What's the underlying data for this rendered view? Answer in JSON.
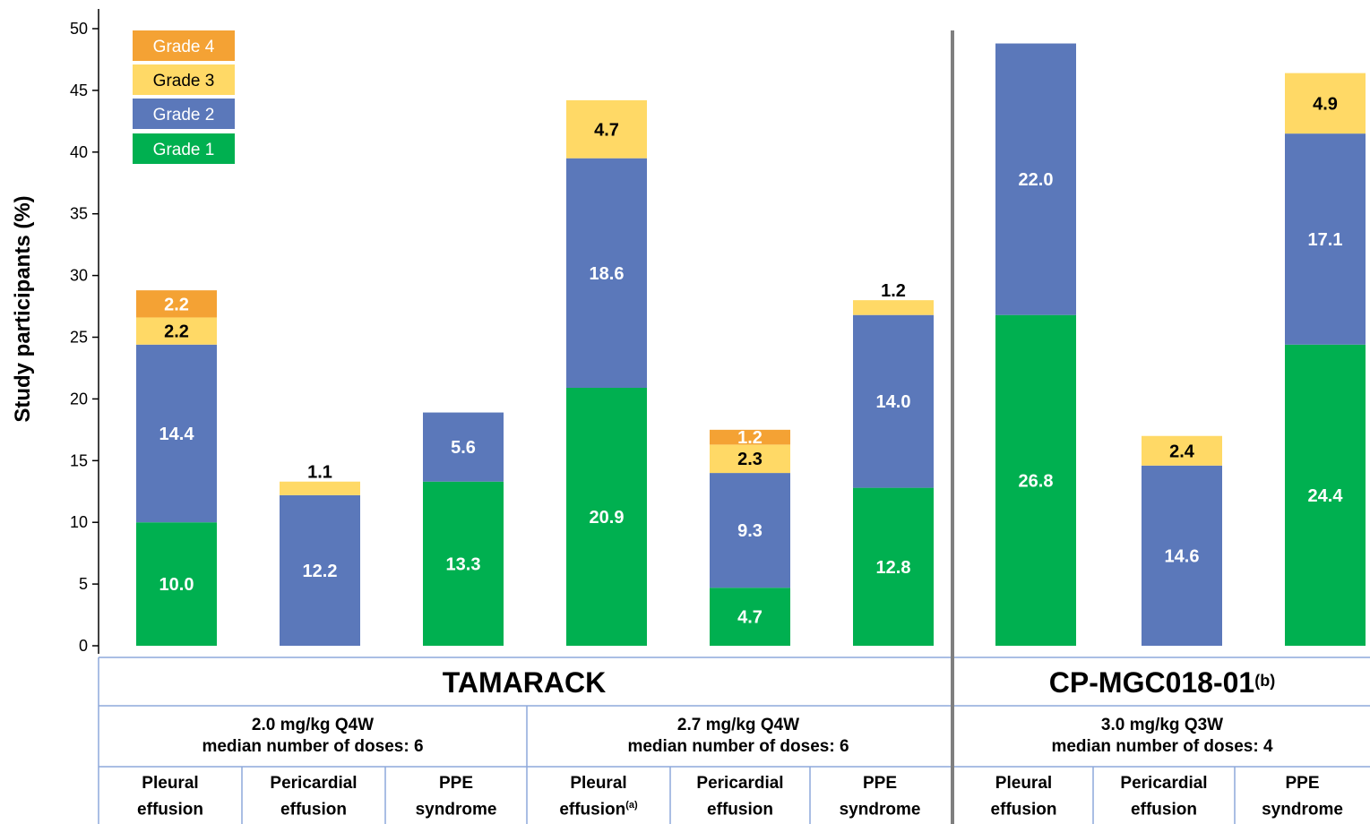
{
  "chart_data": {
    "type": "bar",
    "stacked": true,
    "ylabel": "Study participants (%)",
    "ylim": [
      0,
      50
    ],
    "yticks": [
      0,
      5,
      10,
      15,
      20,
      25,
      30,
      35,
      40,
      45,
      50
    ],
    "grid": false,
    "legend_position": "top-left",
    "colors": {
      "Grade 1": "#00B050",
      "Grade 2": "#5B78BA",
      "Grade 3": "#FFD966",
      "Grade 4": "#F4A234"
    },
    "series": [
      {
        "name": "Grade 1",
        "values": [
          10.0,
          null,
          13.3,
          20.9,
          4.7,
          12.8,
          26.8,
          null,
          24.4
        ]
      },
      {
        "name": "Grade 2",
        "values": [
          14.4,
          12.2,
          5.6,
          18.6,
          9.3,
          14.0,
          22.0,
          14.6,
          17.1
        ]
      },
      {
        "name": "Grade 3",
        "values": [
          2.2,
          1.1,
          null,
          4.7,
          2.3,
          1.2,
          null,
          2.4,
          4.9
        ]
      },
      {
        "name": "Grade 4",
        "values": [
          2.2,
          null,
          null,
          null,
          1.2,
          null,
          null,
          null,
          null
        ]
      }
    ],
    "label_texts": {
      "Grade 1": [
        "10.0",
        "",
        "13.3",
        "20.9",
        "4.7",
        "12.8",
        "26.8",
        "",
        "24.4"
      ],
      "Grade 2": [
        "14.4",
        "12.2",
        "5.6",
        "18.6",
        "9.3",
        "14.0",
        "22.0",
        "14.6",
        "17.1"
      ],
      "Grade 3": [
        "2.2",
        "1.1",
        "",
        "4.7",
        "2.3",
        "1.2",
        "",
        "2.4",
        "4.9"
      ],
      "Grade 4": [
        "2.2",
        "",
        "",
        "",
        "1.2",
        "",
        "",
        "",
        ""
      ]
    },
    "categories": [
      {
        "label1": "Pleural",
        "label2": "effusion",
        "sup": ""
      },
      {
        "label1": "Pericardial",
        "label2": "effusion",
        "sup": ""
      },
      {
        "label1": "PPE",
        "label2": "syndrome",
        "sup": ""
      },
      {
        "label1": "Pleural",
        "label2": "effusion",
        "sup": "(a)"
      },
      {
        "label1": "Pericardial",
        "label2": "effusion",
        "sup": ""
      },
      {
        "label1": "PPE",
        "label2": "syndrome",
        "sup": ""
      },
      {
        "label1": "Pleural",
        "label2": "effusion",
        "sup": ""
      },
      {
        "label1": "Pericardial",
        "label2": "effusion",
        "sup": ""
      },
      {
        "label1": "PPE",
        "label2": "syndrome",
        "sup": ""
      }
    ],
    "groups": [
      {
        "study": "TAMARACK",
        "study_sup": ""
      },
      {
        "study": "CP-MGC018-01",
        "study_sup": "(b)"
      }
    ],
    "doses": [
      {
        "line1": "2.0 mg/kg Q4W",
        "line2": "median number of doses: 6"
      },
      {
        "line1": "2.7 mg/kg Q4W",
        "line2": "median number of doses: 6"
      },
      {
        "line1": "3.0 mg/kg Q3W",
        "line2": "median number of doses: 4"
      }
    ]
  }
}
